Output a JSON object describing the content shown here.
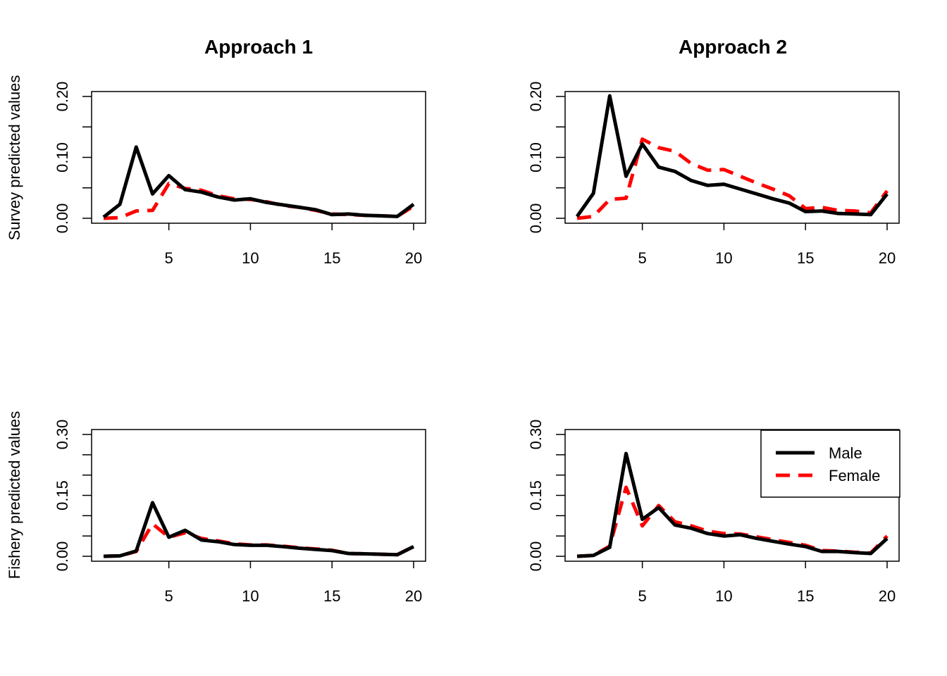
{
  "figure": {
    "row_labels": [
      "Survey predicted values",
      "Fishery predicted values"
    ],
    "column_titles": [
      "Approach 1",
      "Approach 2"
    ]
  },
  "colors": {
    "male": "#000000",
    "female": "#ff0000"
  },
  "legend": {
    "entries": [
      "Male",
      "Female"
    ]
  },
  "chart_data": [
    {
      "type": "line",
      "title": "Approach 1",
      "ylabel": "Survey predicted values",
      "xlabel": "",
      "xlim": [
        1,
        20
      ],
      "ylim": [
        0,
        0.2
      ],
      "x_ticks": [
        5,
        10,
        15,
        20
      ],
      "x_tick_labels": [
        "5",
        "10",
        "15",
        "20"
      ],
      "y_ticks": [
        0,
        0.05,
        0.1,
        0.15,
        0.2
      ],
      "y_tick_labels": [
        "0.00",
        "",
        "0.10",
        "",
        "0.20"
      ],
      "x": [
        1,
        2,
        3,
        4,
        5,
        6,
        7,
        8,
        9,
        10,
        11,
        12,
        13,
        14,
        15,
        16,
        17,
        18,
        19,
        20
      ],
      "series": [
        {
          "name": "Male",
          "values": [
            0.002,
            0.023,
            0.117,
            0.04,
            0.07,
            0.047,
            0.043,
            0.035,
            0.03,
            0.032,
            0.026,
            0.022,
            0.018,
            0.014,
            0.006,
            0.007,
            0.005,
            0.004,
            0.003,
            0.023
          ]
        },
        {
          "name": "Female",
          "values": [
            0.0,
            0.001,
            0.012,
            0.013,
            0.057,
            0.049,
            0.046,
            0.037,
            0.032,
            0.031,
            0.027,
            0.021,
            0.018,
            0.013,
            0.007,
            0.006,
            0.005,
            0.004,
            0.003,
            0.02
          ]
        }
      ]
    },
    {
      "type": "line",
      "title": "Approach 2",
      "ylabel": "",
      "xlabel": "",
      "xlim": [
        1,
        20
      ],
      "ylim": [
        0,
        0.2
      ],
      "x_ticks": [
        5,
        10,
        15,
        20
      ],
      "x_tick_labels": [
        "5",
        "10",
        "15",
        "20"
      ],
      "y_ticks": [
        0,
        0.05,
        0.1,
        0.15,
        0.2
      ],
      "y_tick_labels": [
        "0.00",
        "",
        "0.10",
        "",
        "0.20"
      ],
      "x": [
        1,
        2,
        3,
        4,
        5,
        6,
        7,
        8,
        9,
        10,
        11,
        12,
        13,
        14,
        15,
        16,
        17,
        18,
        19,
        20
      ],
      "series": [
        {
          "name": "Male",
          "values": [
            0.003,
            0.041,
            0.201,
            0.069,
            0.122,
            0.084,
            0.077,
            0.062,
            0.054,
            0.056,
            0.048,
            0.04,
            0.032,
            0.025,
            0.011,
            0.012,
            0.008,
            0.007,
            0.006,
            0.04
          ]
        },
        {
          "name": "Female",
          "values": [
            0.0,
            0.003,
            0.031,
            0.033,
            0.13,
            0.116,
            0.11,
            0.09,
            0.079,
            0.08,
            0.069,
            0.058,
            0.048,
            0.037,
            0.016,
            0.018,
            0.013,
            0.012,
            0.009,
            0.045
          ]
        }
      ]
    },
    {
      "type": "line",
      "title": "",
      "ylabel": "Fishery predicted values",
      "xlabel": "",
      "xlim": [
        1,
        20
      ],
      "ylim": [
        0,
        0.3
      ],
      "x_ticks": [
        5,
        10,
        15,
        20
      ],
      "x_tick_labels": [
        "5",
        "10",
        "15",
        "20"
      ],
      "y_ticks": [
        0,
        0.05,
        0.1,
        0.15,
        0.2,
        0.25,
        0.3
      ],
      "y_tick_labels": [
        "0.00",
        "",
        "",
        "0.15",
        "",
        "",
        "0.30"
      ],
      "x": [
        1,
        2,
        3,
        4,
        5,
        6,
        7,
        8,
        9,
        10,
        11,
        12,
        13,
        14,
        15,
        16,
        17,
        18,
        19,
        20
      ],
      "series": [
        {
          "name": "Male",
          "values": [
            0.0,
            0.001,
            0.013,
            0.132,
            0.047,
            0.064,
            0.04,
            0.036,
            0.029,
            0.027,
            0.027,
            0.024,
            0.02,
            0.017,
            0.014,
            0.007,
            0.006,
            0.005,
            0.004,
            0.024
          ]
        },
        {
          "name": "Female",
          "values": [
            0.0,
            0.001,
            0.012,
            0.08,
            0.047,
            0.058,
            0.044,
            0.038,
            0.031,
            0.028,
            0.028,
            0.025,
            0.021,
            0.018,
            0.015,
            0.007,
            0.006,
            0.005,
            0.004,
            0.024
          ]
        }
      ]
    },
    {
      "type": "line",
      "title": "",
      "ylabel": "",
      "xlabel": "",
      "xlim": [
        1,
        20
      ],
      "ylim": [
        0,
        0.3
      ],
      "x_ticks": [
        5,
        10,
        15,
        20
      ],
      "x_tick_labels": [
        "5",
        "10",
        "15",
        "20"
      ],
      "y_ticks": [
        0,
        0.05,
        0.1,
        0.15,
        0.2,
        0.25,
        0.3
      ],
      "y_tick_labels": [
        "0.00",
        "",
        "",
        "0.15",
        "",
        "",
        "0.30"
      ],
      "x": [
        1,
        2,
        3,
        4,
        5,
        6,
        7,
        8,
        9,
        10,
        11,
        12,
        13,
        14,
        15,
        16,
        17,
        18,
        19,
        20
      ],
      "series": [
        {
          "name": "Male",
          "values": [
            0.0,
            0.002,
            0.022,
            0.253,
            0.091,
            0.12,
            0.077,
            0.069,
            0.056,
            0.05,
            0.053,
            0.044,
            0.037,
            0.03,
            0.024,
            0.012,
            0.012,
            0.009,
            0.007,
            0.044
          ]
        },
        {
          "name": "Female",
          "values": [
            0.0,
            0.002,
            0.025,
            0.17,
            0.075,
            0.125,
            0.085,
            0.075,
            0.062,
            0.056,
            0.055,
            0.048,
            0.041,
            0.034,
            0.027,
            0.014,
            0.013,
            0.01,
            0.008,
            0.05
          ]
        }
      ],
      "legend_position": "top-right"
    }
  ]
}
